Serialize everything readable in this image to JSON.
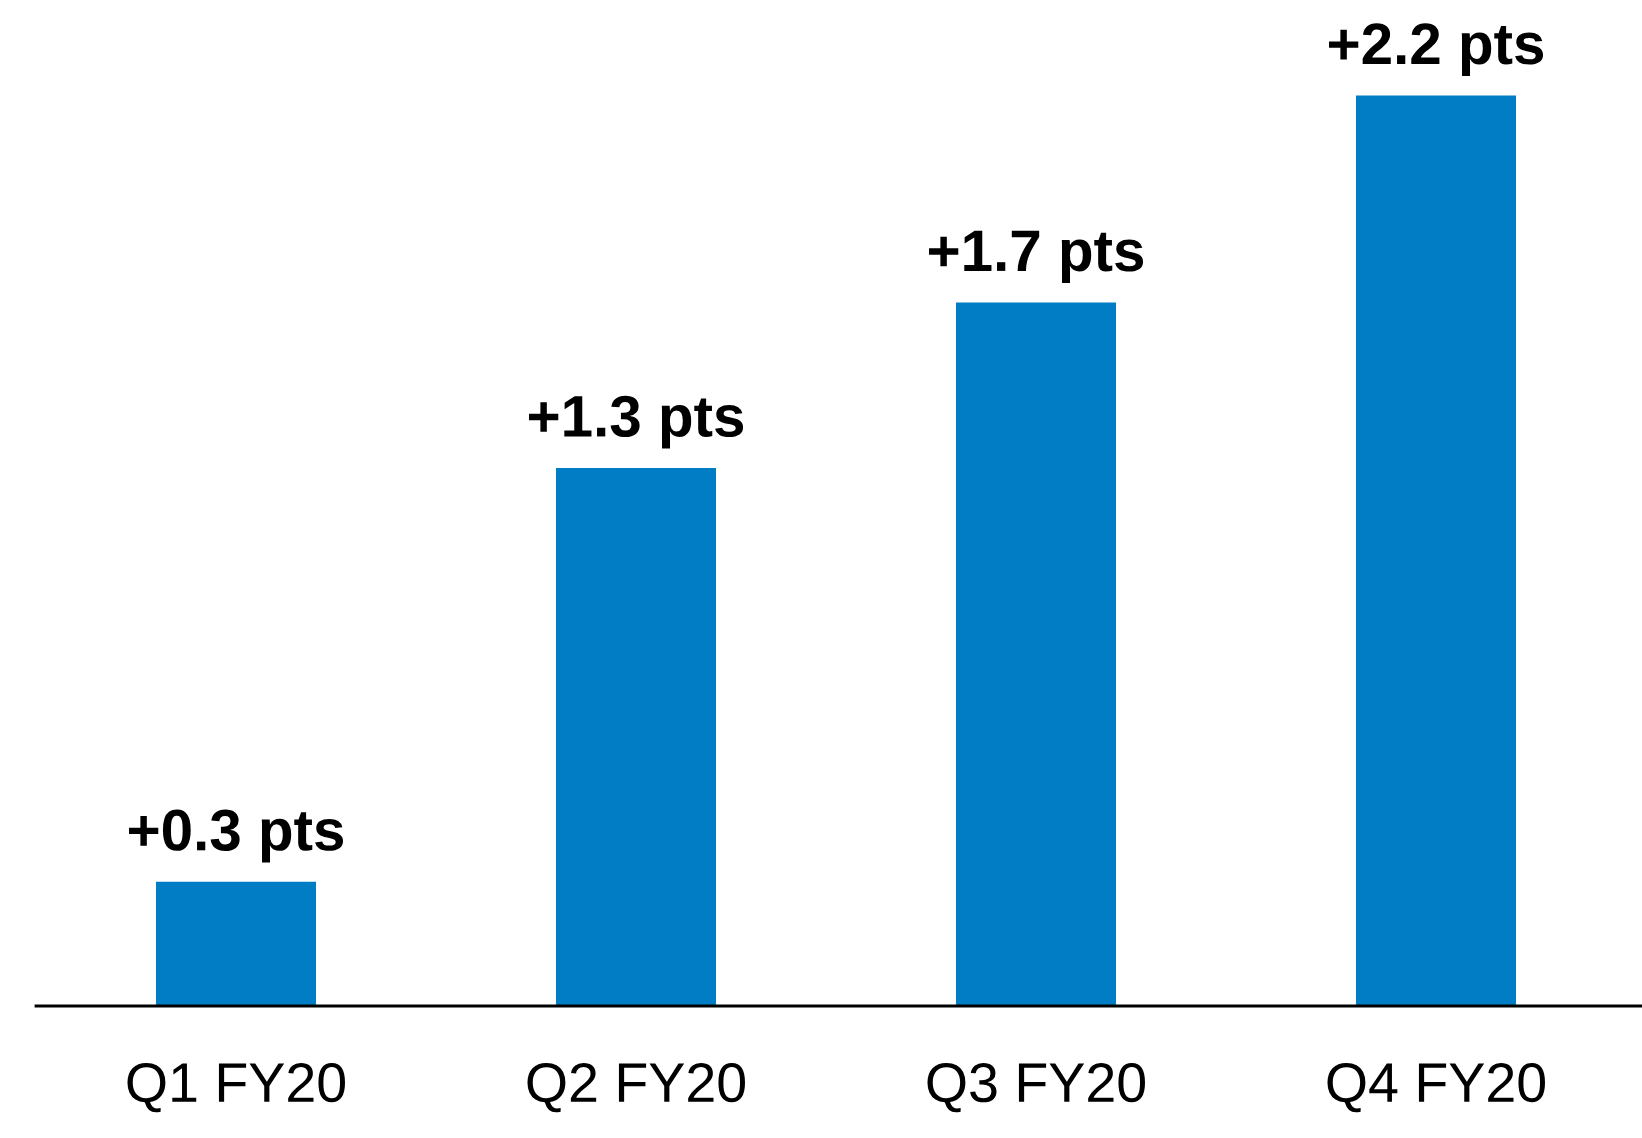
{
  "chart_data": {
    "type": "bar",
    "categories": [
      "Q1 FY20",
      "Q2 FY20",
      "Q3 FY20",
      "Q4 FY20"
    ],
    "values": [
      0.3,
      1.3,
      1.7,
      2.2
    ],
    "color": "#007dc5",
    "value_labels": [
      "+0.3 pts",
      "+1.3 pts",
      "+1.7 pts",
      "+2.2 pts"
    ]
  }
}
